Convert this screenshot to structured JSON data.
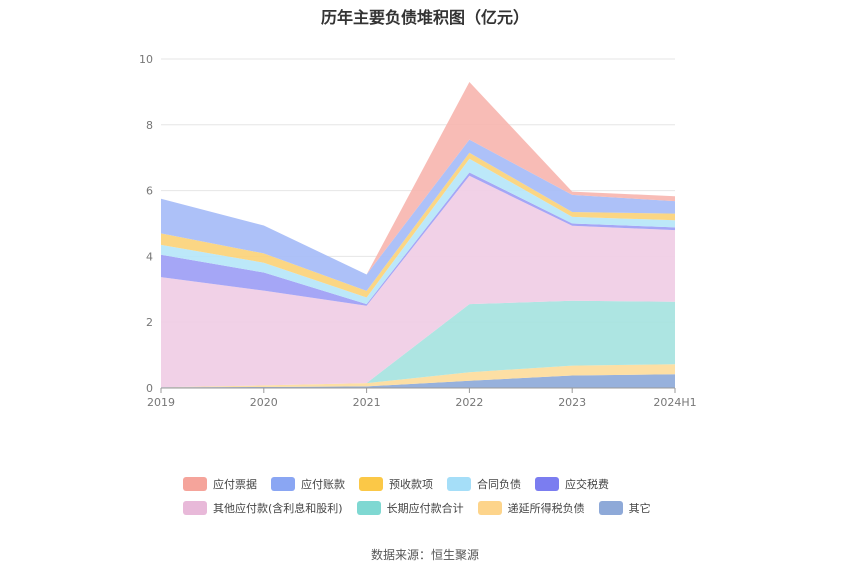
{
  "chart_data": {
    "type": "area",
    "stacked": true,
    "title": "历年主要负债堆积图（亿元）",
    "x": [
      "2019",
      "2020",
      "2021",
      "2022",
      "2023",
      "2024H1"
    ],
    "ylim": [
      0,
      10
    ],
    "yticks": [
      0,
      2,
      4,
      6,
      8,
      10
    ],
    "grid": true,
    "legend_position": "bottom",
    "series": [
      {
        "name": "其它",
        "color": "#8eaad9",
        "values": [
          0.02,
          0.03,
          0.05,
          0.22,
          0.38,
          0.42
        ]
      },
      {
        "name": "递延所得税负债",
        "color": "#fddc9c",
        "values": [
          0.0,
          0.05,
          0.1,
          0.26,
          0.3,
          0.3
        ]
      },
      {
        "name": "长期应付款合计",
        "color": "#a6e3df",
        "values": [
          0.0,
          0.0,
          0.0,
          2.07,
          1.97,
          1.9
        ]
      },
      {
        "name": "其他应付款(含利息和股利)",
        "color": "#f0cde5",
        "values": [
          3.35,
          2.88,
          2.35,
          3.9,
          2.28,
          2.18
        ]
      },
      {
        "name": "应交税费",
        "color": "#9d9ef5",
        "values": [
          0.68,
          0.55,
          0.05,
          0.1,
          0.07,
          0.08
        ]
      },
      {
        "name": "合同负债",
        "color": "#b6e6f9",
        "values": [
          0.3,
          0.3,
          0.2,
          0.42,
          0.2,
          0.22
        ]
      },
      {
        "name": "预收款项",
        "color": "#fbd27a",
        "values": [
          0.35,
          0.28,
          0.2,
          0.18,
          0.15,
          0.2
        ]
      },
      {
        "name": "应付账款",
        "color": "#a6bcf7",
        "values": [
          1.05,
          0.85,
          0.5,
          0.4,
          0.52,
          0.38
        ]
      },
      {
        "name": "应付票据",
        "color": "#f7b6b0",
        "values": [
          0.0,
          0.0,
          0.0,
          1.75,
          0.1,
          0.15
        ]
      }
    ]
  },
  "legend": {
    "row1": [
      {
        "label": "应付票据",
        "color": "#f5a49b"
      },
      {
        "label": "应付账款",
        "color": "#8aa6f3"
      },
      {
        "label": "预收款项",
        "color": "#fbc847"
      },
      {
        "label": "合同负债",
        "color": "#a5def8"
      },
      {
        "label": "应交税费",
        "color": "#7b7df0"
      }
    ],
    "row2": [
      {
        "label": "其他应付款(含利息和股利)",
        "color": "#e8b9d9"
      },
      {
        "label": "长期应付款合计",
        "color": "#7fd8d2"
      },
      {
        "label": "递延所得税负债",
        "color": "#fdd48b"
      },
      {
        "label": "其它",
        "color": "#8ea9d8"
      }
    ]
  },
  "source_text": "数据来源：恒生聚源"
}
